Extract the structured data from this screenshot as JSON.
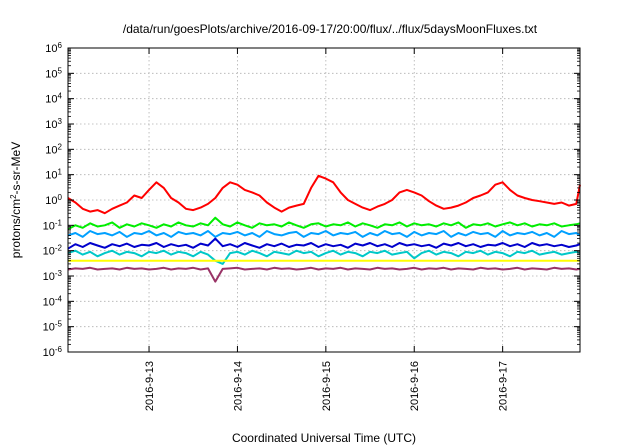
{
  "chart_data": {
    "type": "line",
    "title": "/data/run/goesPlots/archive/2016-09-17/20:00/flux/../flux/5daysMoonFluxes.txt",
    "xlabel": "Coordinated Universal Time (UTC)",
    "ylabel_parts": [
      "protons/cm",
      "2",
      "-s-sr-MeV"
    ],
    "y_scale": "log",
    "ylim": [
      1e-06,
      1000000.0
    ],
    "y_tick_labels": [
      {
        "base": "10",
        "exp": "-6"
      },
      {
        "base": "10",
        "exp": "-5"
      },
      {
        "base": "10",
        "exp": "-4"
      },
      {
        "base": "10",
        "exp": "-3"
      },
      {
        "base": "10",
        "exp": "-2"
      },
      {
        "base": "10",
        "exp": "-1"
      },
      {
        "base": "10",
        "exp": "0"
      },
      {
        "base": "10",
        "exp": "1"
      },
      {
        "base": "10",
        "exp": "2"
      },
      {
        "base": "10",
        "exp": "3"
      },
      {
        "base": "10",
        "exp": "4"
      },
      {
        "base": "10",
        "exp": "5"
      },
      {
        "base": "10",
        "exp": "6"
      }
    ],
    "xlim": [
      "2016-09-12T02:00",
      "2016-09-17T21:00"
    ],
    "x_tick_labels": [
      "2016-9-13",
      "2016-9-14",
      "2016-9-15",
      "2016-9-16",
      "2016-9-17"
    ],
    "x_tick_dates": [
      "2016-09-13T00:00",
      "2016-09-14T00:00",
      "2016-09-15T00:00",
      "2016-09-16T00:00",
      "2016-09-17T00:00"
    ],
    "grid": true,
    "legend": "none",
    "x": [
      "2016-09-12T02:00",
      "2016-09-12T04:00",
      "2016-09-12T06:00",
      "2016-09-12T08:00",
      "2016-09-12T10:00",
      "2016-09-12T12:00",
      "2016-09-12T14:00",
      "2016-09-12T16:00",
      "2016-09-12T18:00",
      "2016-09-12T20:00",
      "2016-09-12T22:00",
      "2016-09-13T00:00",
      "2016-09-13T02:00",
      "2016-09-13T04:00",
      "2016-09-13T06:00",
      "2016-09-13T08:00",
      "2016-09-13T10:00",
      "2016-09-13T12:00",
      "2016-09-13T14:00",
      "2016-09-13T16:00",
      "2016-09-13T18:00",
      "2016-09-13T20:00",
      "2016-09-13T22:00",
      "2016-09-14T00:00",
      "2016-09-14T02:00",
      "2016-09-14T04:00",
      "2016-09-14T06:00",
      "2016-09-14T08:00",
      "2016-09-14T10:00",
      "2016-09-14T12:00",
      "2016-09-14T14:00",
      "2016-09-14T16:00",
      "2016-09-14T18:00",
      "2016-09-14T20:00",
      "2016-09-14T22:00",
      "2016-09-15T00:00",
      "2016-09-15T02:00",
      "2016-09-15T04:00",
      "2016-09-15T06:00",
      "2016-09-15T08:00",
      "2016-09-15T10:00",
      "2016-09-15T12:00",
      "2016-09-15T14:00",
      "2016-09-15T16:00",
      "2016-09-15T18:00",
      "2016-09-15T20:00",
      "2016-09-15T22:00",
      "2016-09-16T00:00",
      "2016-09-16T02:00",
      "2016-09-16T04:00",
      "2016-09-16T06:00",
      "2016-09-16T08:00",
      "2016-09-16T10:00",
      "2016-09-16T12:00",
      "2016-09-16T14:00",
      "2016-09-16T16:00",
      "2016-09-16T18:00",
      "2016-09-16T20:00",
      "2016-09-16T22:00",
      "2016-09-17T00:00",
      "2016-09-17T02:00",
      "2016-09-17T04:00",
      "2016-09-17T06:00",
      "2016-09-17T08:00",
      "2016-09-17T10:00",
      "2016-09-17T12:00",
      "2016-09-17T14:00",
      "2016-09-17T16:00",
      "2016-09-17T18:00",
      "2016-09-17T20:00",
      "2016-09-17T21:00"
    ],
    "series": [
      {
        "color": "#ff0000",
        "values": [
          1.2,
          0.8,
          0.45,
          0.35,
          0.4,
          0.3,
          0.45,
          0.6,
          0.8,
          1.5,
          1.2,
          2.5,
          5,
          3,
          1.2,
          0.8,
          0.45,
          0.4,
          0.5,
          0.7,
          1.2,
          3,
          5,
          4,
          2.5,
          2,
          1.5,
          0.8,
          0.5,
          0.35,
          0.5,
          0.6,
          0.7,
          3,
          9,
          7,
          5,
          2,
          1,
          0.7,
          0.5,
          0.4,
          0.55,
          0.7,
          1,
          2,
          2.5,
          2,
          1.5,
          0.9,
          0.6,
          0.45,
          0.5,
          0.6,
          0.8,
          1.2,
          1.5,
          2,
          4,
          5,
          2.5,
          1.5,
          1.2,
          1,
          0.9,
          0.8,
          0.7,
          0.8,
          0.6,
          0.7,
          4
        ]
      },
      {
        "color": "#00ee00",
        "values": [
          0.07,
          0.1,
          0.08,
          0.12,
          0.09,
          0.1,
          0.13,
          0.08,
          0.11,
          0.09,
          0.12,
          0.1,
          0.08,
          0.11,
          0.09,
          0.13,
          0.1,
          0.09,
          0.12,
          0.1,
          0.2,
          0.11,
          0.09,
          0.13,
          0.1,
          0.08,
          0.12,
          0.1,
          0.11,
          0.09,
          0.13,
          0.1,
          0.08,
          0.11,
          0.12,
          0.09,
          0.11,
          0.1,
          0.13,
          0.09,
          0.12,
          0.1,
          0.08,
          0.11,
          0.1,
          0.13,
          0.09,
          0.12,
          0.1,
          0.11,
          0.09,
          0.12,
          0.1,
          0.13,
          0.08,
          0.11,
          0.1,
          0.12,
          0.09,
          0.11,
          0.13,
          0.1,
          0.12,
          0.09,
          0.11,
          0.1,
          0.12,
          0.09,
          0.1,
          0.11,
          0.12
        ]
      },
      {
        "color": "#00a0ff",
        "values": [
          0.04,
          0.05,
          0.035,
          0.06,
          0.045,
          0.05,
          0.04,
          0.055,
          0.035,
          0.05,
          0.045,
          0.06,
          0.04,
          0.05,
          0.035,
          0.055,
          0.045,
          0.05,
          0.04,
          0.06,
          0.035,
          0.05,
          0.045,
          0.055,
          0.04,
          0.05,
          0.035,
          0.06,
          0.045,
          0.04,
          0.05,
          0.055,
          0.035,
          0.05,
          0.045,
          0.06,
          0.04,
          0.05,
          0.045,
          0.055,
          0.035,
          0.05,
          0.04,
          0.06,
          0.045,
          0.05,
          0.035,
          0.055,
          0.04,
          0.05,
          0.045,
          0.06,
          0.035,
          0.05,
          0.04,
          0.055,
          0.045,
          0.05,
          0.035,
          0.06,
          0.04,
          0.05,
          0.045,
          0.055,
          0.04,
          0.05,
          0.035,
          0.06,
          0.045,
          0.05,
          0.04
        ]
      },
      {
        "color": "#0000cc",
        "values": [
          0.012,
          0.018,
          0.014,
          0.02,
          0.016,
          0.013,
          0.018,
          0.015,
          0.019,
          0.014,
          0.017,
          0.016,
          0.02,
          0.014,
          0.018,
          0.015,
          0.017,
          0.013,
          0.019,
          0.016,
          0.03,
          0.015,
          0.018,
          0.014,
          0.02,
          0.016,
          0.013,
          0.018,
          0.015,
          0.019,
          0.014,
          0.017,
          0.016,
          0.02,
          0.014,
          0.018,
          0.015,
          0.017,
          0.013,
          0.019,
          0.016,
          0.02,
          0.015,
          0.018,
          0.014,
          0.02,
          0.016,
          0.018,
          0.015,
          0.017,
          0.013,
          0.019,
          0.016,
          0.02,
          0.015,
          0.018,
          0.014,
          0.017,
          0.016,
          0.02,
          0.015,
          0.018,
          0.014,
          0.02,
          0.016,
          0.018,
          0.015,
          0.017,
          0.014,
          0.016,
          0.018
        ]
      },
      {
        "color": "#00c8c8",
        "values": [
          0.008,
          0.01,
          0.007,
          0.009,
          0.006,
          0.008,
          0.01,
          0.007,
          0.009,
          0.008,
          0.006,
          0.009,
          0.008,
          0.01,
          0.007,
          0.009,
          0.008,
          0.006,
          0.009,
          0.007,
          0.004,
          0.003,
          0.008,
          0.009,
          0.007,
          0.01,
          0.008,
          0.006,
          0.009,
          0.008,
          0.007,
          0.01,
          0.008,
          0.009,
          0.006,
          0.008,
          0.01,
          0.007,
          0.009,
          0.008,
          0.006,
          0.009,
          0.008,
          0.01,
          0.007,
          0.008,
          0.009,
          0.005,
          0.008,
          0.01,
          0.007,
          0.009,
          0.008,
          0.006,
          0.009,
          0.008,
          0.01,
          0.007,
          0.009,
          0.008,
          0.006,
          0.009,
          0.008,
          0.01,
          0.007,
          0.008,
          0.009,
          0.007,
          0.008,
          0.009,
          0.008
        ]
      },
      {
        "color": "#ffff00",
        "values": [
          0.004,
          0.004,
          0.004,
          0.004,
          0.004,
          0.004,
          0.004,
          0.004,
          0.004,
          0.004,
          0.004,
          0.004,
          0.004,
          0.004,
          0.004,
          0.004,
          0.004,
          0.004,
          0.004,
          0.004,
          0.004,
          0.004,
          0.004,
          0.004,
          0.004,
          0.004,
          0.004,
          0.004,
          0.004,
          0.004,
          0.004,
          0.004,
          0.004,
          0.004,
          0.004,
          0.004,
          0.004,
          0.004,
          0.004,
          0.004,
          0.004,
          0.004,
          0.004,
          0.004,
          0.004,
          0.004,
          0.004,
          0.004,
          0.004,
          0.004,
          0.004,
          0.004,
          0.004,
          0.004,
          0.004,
          0.004,
          0.004,
          0.004,
          0.004,
          0.004,
          0.004,
          0.004,
          0.004,
          0.004,
          0.004,
          0.004,
          0.004,
          0.004,
          0.004,
          0.004,
          0.004
        ]
      },
      {
        "color": "#993366",
        "values": [
          0.0018,
          0.002,
          0.0019,
          0.0021,
          0.0018,
          0.0019,
          0.002,
          0.0018,
          0.0021,
          0.0019,
          0.002,
          0.0018,
          0.0019,
          0.0021,
          0.0018,
          0.002,
          0.0019,
          0.0021,
          0.0018,
          0.002,
          0.0006,
          0.0019,
          0.002,
          0.0021,
          0.0018,
          0.0019,
          0.002,
          0.0018,
          0.0021,
          0.0019,
          0.002,
          0.0018,
          0.0019,
          0.0021,
          0.0018,
          0.002,
          0.0019,
          0.0021,
          0.0018,
          0.002,
          0.0019,
          0.0018,
          0.0021,
          0.0019,
          0.002,
          0.0018,
          0.0019,
          0.0021,
          0.0018,
          0.002,
          0.0019,
          0.0021,
          0.0018,
          0.002,
          0.0019,
          0.0018,
          0.0021,
          0.0019,
          0.002,
          0.0018,
          0.0019,
          0.0021,
          0.0018,
          0.002,
          0.0019,
          0.0018,
          0.0021,
          0.0019,
          0.002,
          0.0018,
          0.0019
        ]
      }
    ]
  }
}
